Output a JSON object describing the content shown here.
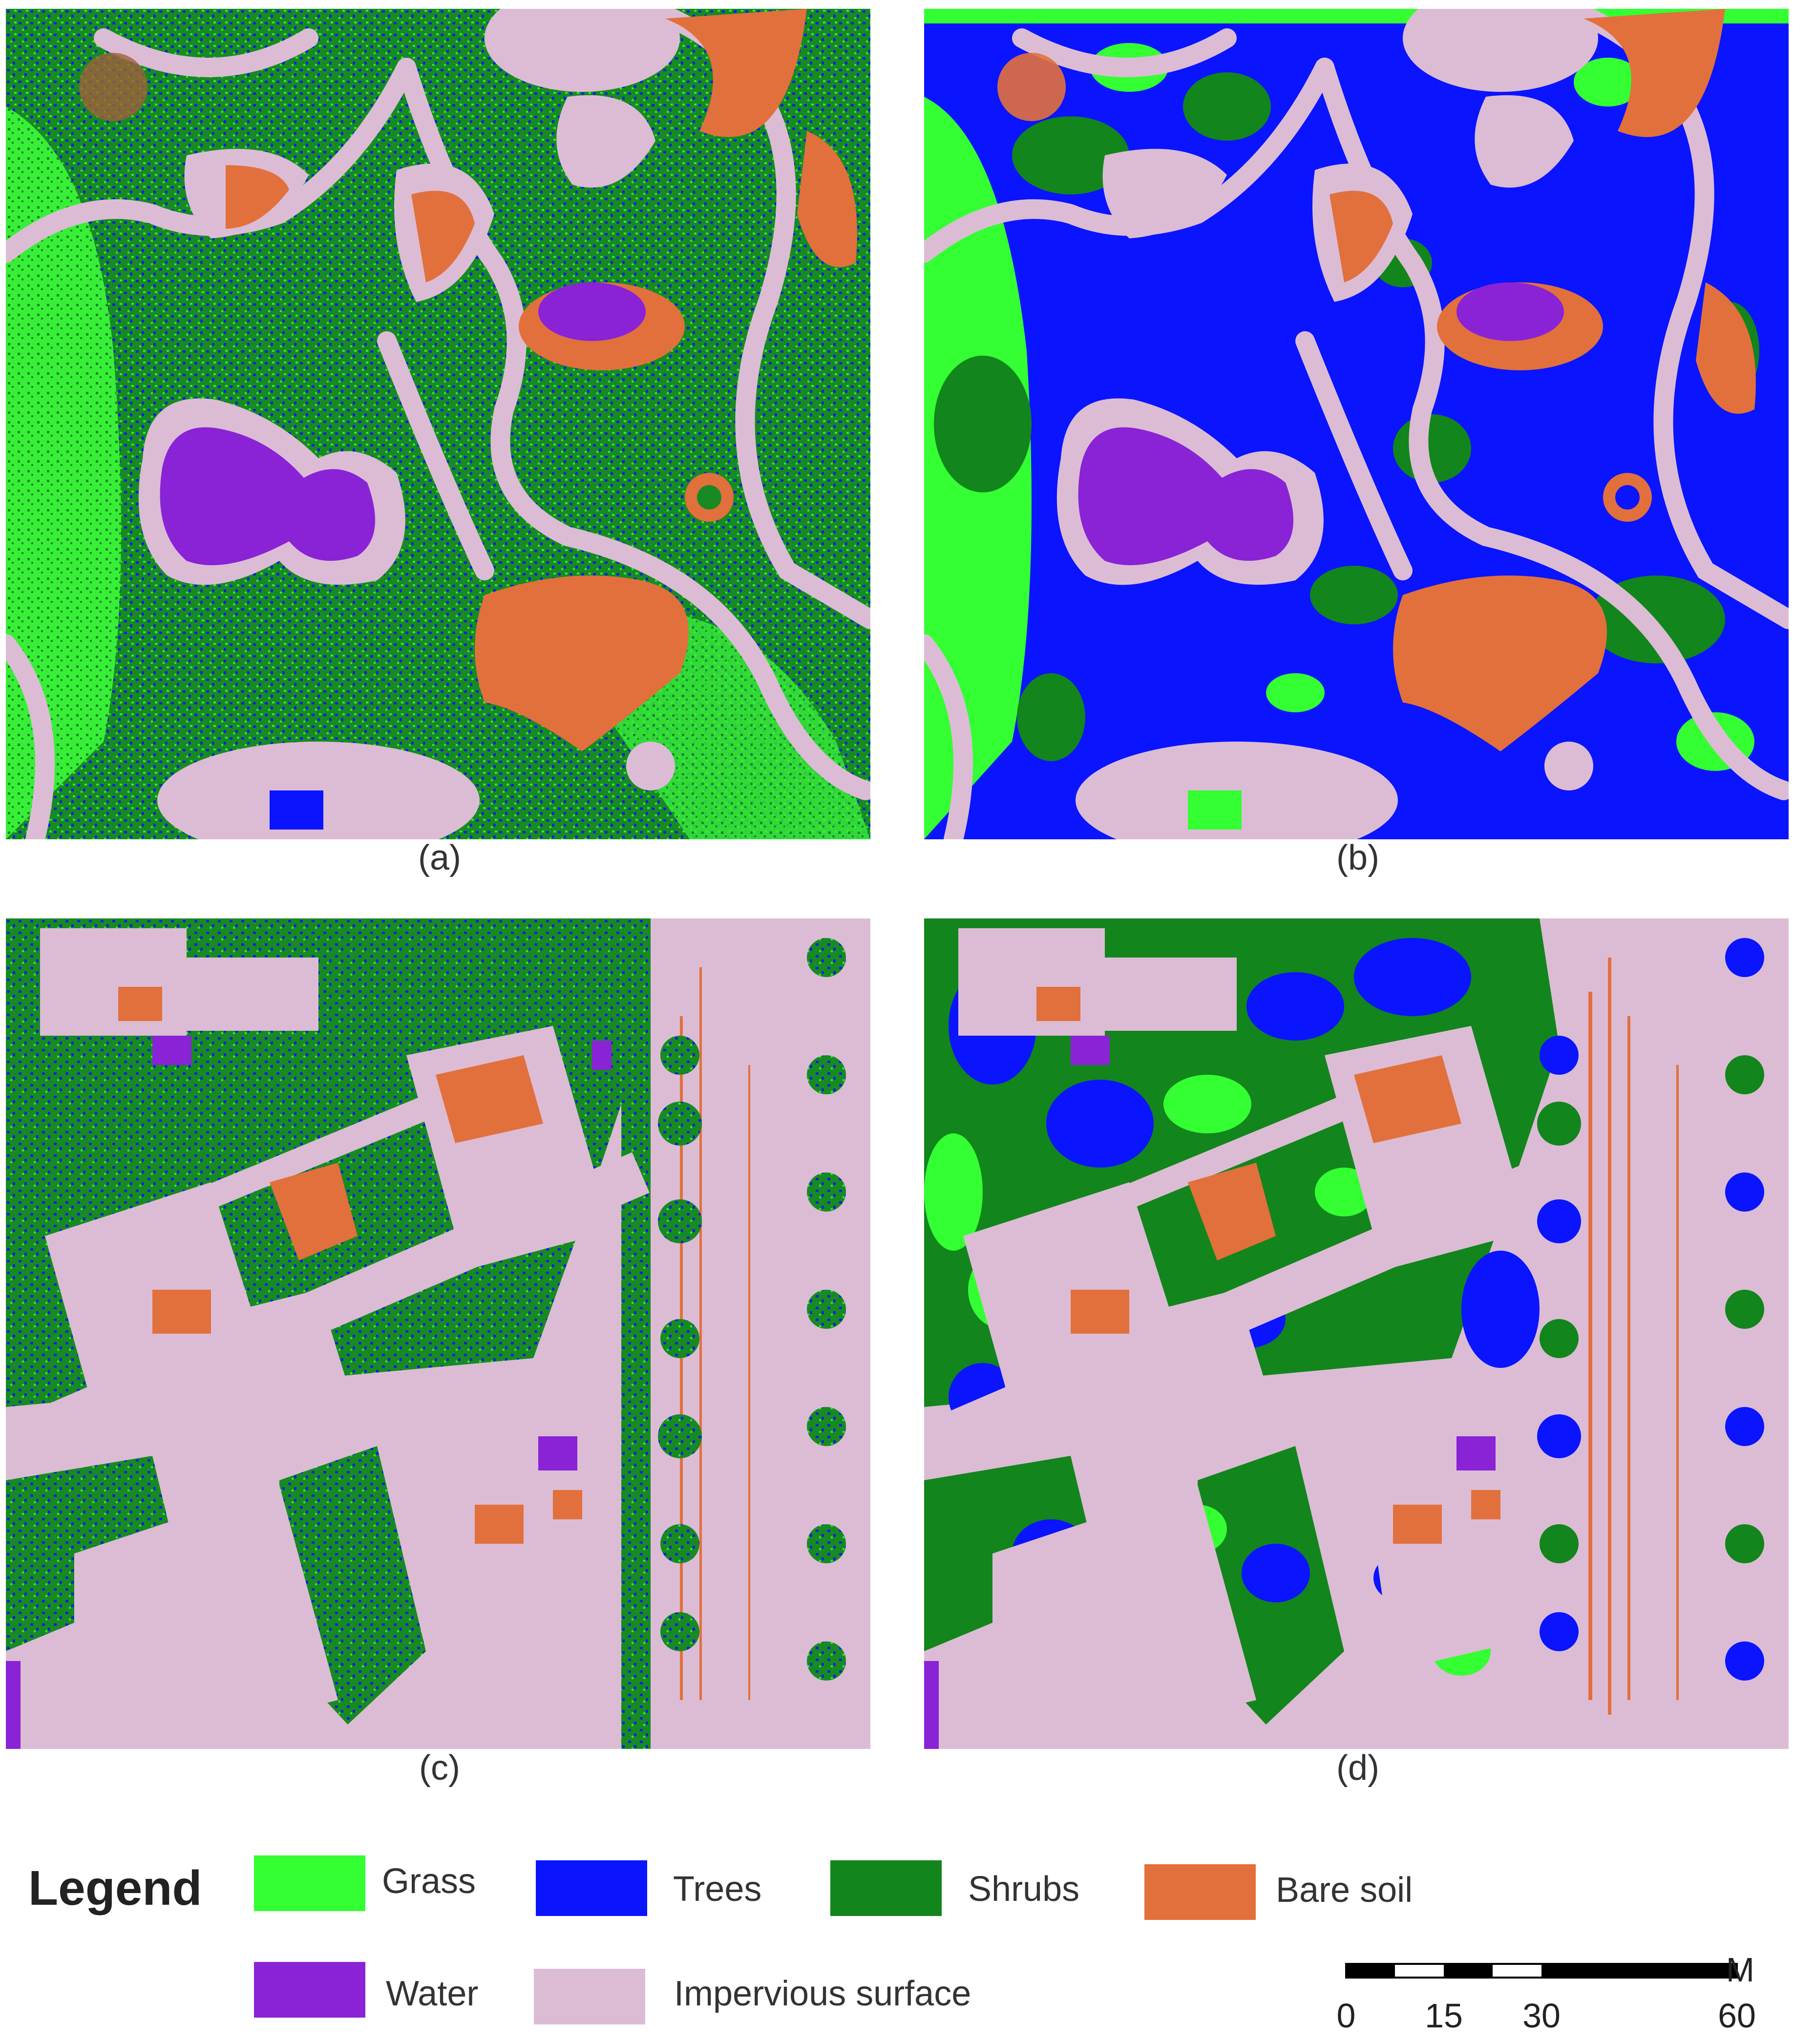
{
  "panels": [
    {
      "id": "a",
      "caption": "(a)"
    },
    {
      "id": "b",
      "caption": "(b)"
    },
    {
      "id": "c",
      "caption": "(c)"
    },
    {
      "id": "d",
      "caption": "(d)"
    }
  ],
  "legend": {
    "title": "Legend",
    "items": [
      {
        "label": "Grass",
        "color": "#33ff33"
      },
      {
        "label": "Trees",
        "color": "#0a14ff"
      },
      {
        "label": "Shrubs",
        "color": "#12851c"
      },
      {
        "label": "Bare soil",
        "color": "#e2703c"
      },
      {
        "label": "Water",
        "color": "#8a22d6"
      },
      {
        "label": "Impervious surface",
        "color": "#dcbcd4"
      }
    ]
  },
  "scale_bar": {
    "unit": "M",
    "ticks": [
      "0",
      "15",
      "30",
      "60"
    ]
  }
}
